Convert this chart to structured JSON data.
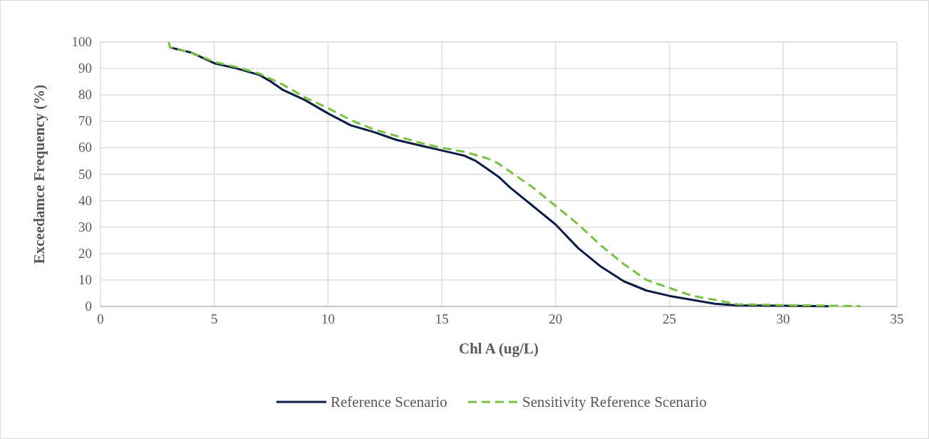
{
  "chart_data": {
    "type": "line",
    "xlabel": "Chl A (ug/L)",
    "ylabel": "Exceedamce Frequency (%)",
    "xlim": [
      0,
      35
    ],
    "xticks": [
      0,
      5,
      10,
      15,
      20,
      25,
      30,
      35
    ],
    "ylim": [
      0,
      100
    ],
    "yticks": [
      0,
      10,
      20,
      30,
      40,
      50,
      60,
      70,
      80,
      90,
      100
    ],
    "grid": true,
    "legend": "bottom",
    "series": [
      {
        "name": "Reference Scenario",
        "color": "#0c1d45",
        "line_style": "solid",
        "x": [
          3.05,
          4,
          5,
          6,
          7,
          7.5,
          8,
          9,
          10,
          11,
          12,
          13,
          14,
          15,
          16,
          16.5,
          17,
          17.5,
          18,
          19,
          20,
          21,
          22,
          23,
          24,
          25,
          26,
          27,
          28,
          30,
          32
        ],
        "values": [
          98,
          96,
          92,
          90,
          87.5,
          85,
          82,
          78,
          73,
          68.5,
          66,
          63,
          61,
          59,
          57,
          55,
          52,
          49,
          45,
          38,
          31,
          22,
          15,
          9.5,
          6,
          4,
          2.5,
          1,
          0.4,
          0.3,
          0.1
        ]
      },
      {
        "name": "Sensitivity Reference Scenario",
        "color": "#7ac143",
        "line_style": "dashed",
        "x": [
          3,
          3.05,
          4,
          5,
          6,
          7,
          8,
          9,
          10,
          11,
          12,
          13,
          14,
          15,
          16,
          17,
          17.5,
          18,
          19,
          20,
          21,
          22,
          23,
          24,
          25,
          26,
          27,
          28,
          30,
          32,
          33.4
        ],
        "values": [
          100,
          98,
          96,
          92.5,
          90.5,
          88,
          84,
          79,
          75,
          70.5,
          67,
          64.5,
          62,
          60,
          58.5,
          56,
          54,
          51,
          45,
          38,
          31,
          23,
          16,
          10,
          7,
          4,
          2.5,
          0.8,
          0.5,
          0.3,
          0.1
        ]
      }
    ]
  }
}
